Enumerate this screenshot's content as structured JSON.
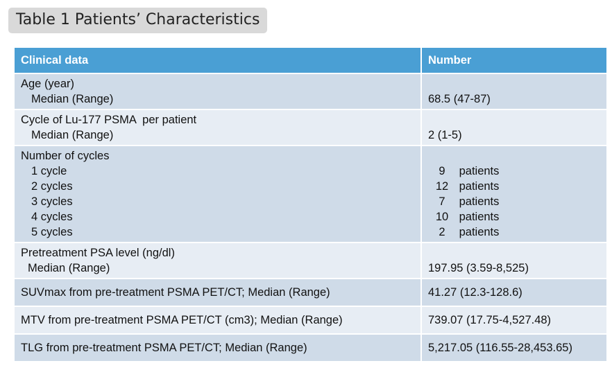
{
  "title": "Table 1 Patients’ Characteristics",
  "table": {
    "headers": [
      "Clinical data",
      "Number"
    ],
    "age": {
      "label": "Age (year)",
      "sub": "Median (Range)",
      "value": "68.5 (47-87)"
    },
    "cycle": {
      "label": "Cycle of Lu-177 PSMA  per patient",
      "sub": "Median (Range)",
      "value": "2 (1-5)"
    },
    "num_cycles": {
      "label": "Number of cycles",
      "items": [
        {
          "label": "1 cycle",
          "count": "9",
          "unit": "patients"
        },
        {
          "label": "2 cycles",
          "count": "12",
          "unit": "patients"
        },
        {
          "label": "3 cycles",
          "count": "7",
          "unit": "patients"
        },
        {
          "label": "4 cycles",
          "count": "10",
          "unit": "patients"
        },
        {
          "label": "5 cycles",
          "count": "2",
          "unit": "patients"
        }
      ]
    },
    "psa": {
      "label": "Pretreatment PSA level (ng/dl)",
      "sub": "Median (Range)",
      "value": "197.95 (3.59-8,525)"
    },
    "suv": {
      "label": "SUVmax from pre-treatment PSMA PET/CT; Median (Range)",
      "value": "41.27 (12.3-128.6)"
    },
    "mtv": {
      "label": "MTV from pre-treatment PSMA PET/CT (cm3); Median (Range)",
      "value": "739.07 (17.75-4,527.48)"
    },
    "tlg": {
      "label": "TLG from pre-treatment PSMA PET/CT; Median (Range)",
      "value": "5,217.05 (116.55-28,453.65)"
    }
  }
}
